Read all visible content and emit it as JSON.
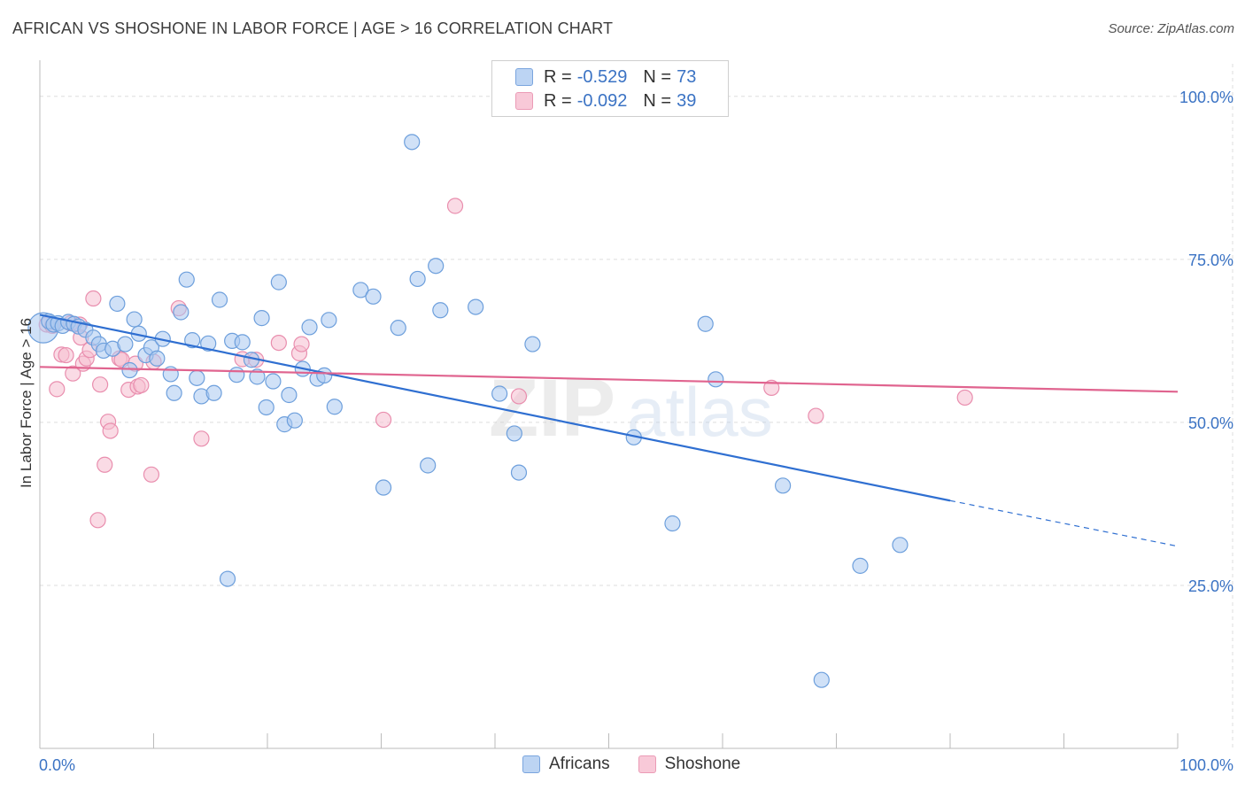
{
  "title": "AFRICAN VS SHOSHONE IN LABOR FORCE | AGE > 16 CORRELATION CHART",
  "source": "Source: ZipAtlas.com",
  "watermark": {
    "zip": "ZIP",
    "atlas": "atlas"
  },
  "legend": {
    "africans": {
      "r_label": "R = ",
      "r_value": "-0.529",
      "n_label": "N = ",
      "n_value": "73"
    },
    "shoshone": {
      "r_label": "R = ",
      "r_value": "-0.092",
      "n_label": "N = ",
      "n_value": "39"
    }
  },
  "bottom_legend": {
    "africans": "Africans",
    "shoshone": "Shoshone"
  },
  "colors": {
    "africans_fill": "#a9c8f0",
    "africans_stroke": "#6d9fdc",
    "africans_line": "#2f6fd1",
    "shoshone_fill": "#f6bdd0",
    "shoshone_stroke": "#e98eae",
    "shoshone_line": "#e0648f",
    "grid": "#dddddd",
    "tick_text": "#3b73c4"
  },
  "chart_data": {
    "type": "scatter",
    "title": "AFRICAN VS SHOSHONE IN LABOR FORCE | AGE > 16 CORRELATION CHART",
    "xlabel": "",
    "ylabel": "In Labor Force | Age > 16",
    "xlim": [
      0,
      100
    ],
    "ylim": [
      0,
      105
    ],
    "x_tick_labels": [
      "0.0%",
      "100.0%"
    ],
    "y_ticks": [
      25,
      50,
      75,
      100
    ],
    "y_tick_labels": [
      "25.0%",
      "50.0%",
      "75.0%",
      "100.0%"
    ],
    "grid": true,
    "series": [
      {
        "name": "Africans",
        "r": -0.529,
        "n": 73,
        "trend": {
          "x0": 0,
          "y0": 66.5,
          "x1": 80,
          "y1": 38.0,
          "dash_x1": 100,
          "dash_y1": 31.0
        },
        "points": [
          [
            0.3,
            64.5
          ],
          [
            0.8,
            65.5
          ],
          [
            1.2,
            65
          ],
          [
            1.6,
            65.2
          ],
          [
            2.0,
            64.8
          ],
          [
            2.5,
            65.4
          ],
          [
            3.0,
            65.1
          ],
          [
            3.4,
            64.7
          ],
          [
            4.0,
            64.2
          ],
          [
            4.7,
            63.0
          ],
          [
            5.2,
            62.0
          ],
          [
            5.6,
            61.0
          ],
          [
            6.4,
            61.3
          ],
          [
            6.8,
            68.2
          ],
          [
            7.5,
            62.0
          ],
          [
            7.9,
            58.0
          ],
          [
            8.3,
            65.8
          ],
          [
            8.7,
            63.6
          ],
          [
            9.3,
            60.3
          ],
          [
            9.8,
            61.5
          ],
          [
            10.3,
            59.8
          ],
          [
            10.8,
            62.8
          ],
          [
            11.5,
            57.4
          ],
          [
            11.8,
            54.5
          ],
          [
            12.4,
            66.9
          ],
          [
            12.9,
            71.9
          ],
          [
            13.4,
            62.6
          ],
          [
            13.8,
            56.8
          ],
          [
            14.2,
            54.0
          ],
          [
            14.8,
            62.1
          ],
          [
            15.3,
            54.5
          ],
          [
            15.8,
            68.8
          ],
          [
            16.5,
            26.0
          ],
          [
            16.9,
            62.5
          ],
          [
            17.3,
            57.3
          ],
          [
            17.8,
            62.3
          ],
          [
            18.6,
            59.6
          ],
          [
            19.1,
            57.0
          ],
          [
            19.5,
            66.0
          ],
          [
            19.9,
            52.3
          ],
          [
            20.5,
            56.3
          ],
          [
            21.0,
            71.5
          ],
          [
            21.5,
            49.7
          ],
          [
            21.9,
            54.2
          ],
          [
            22.4,
            50.3
          ],
          [
            23.1,
            58.2
          ],
          [
            23.7,
            64.6
          ],
          [
            24.4,
            56.7
          ],
          [
            25.0,
            57.2
          ],
          [
            25.4,
            65.7
          ],
          [
            25.9,
            52.4
          ],
          [
            28.2,
            70.3
          ],
          [
            29.3,
            69.3
          ],
          [
            30.2,
            40.0
          ],
          [
            31.5,
            64.5
          ],
          [
            32.7,
            93.0
          ],
          [
            33.2,
            72.0
          ],
          [
            34.1,
            43.4
          ],
          [
            34.8,
            74.0
          ],
          [
            35.2,
            67.2
          ],
          [
            38.3,
            67.7
          ],
          [
            40.4,
            54.4
          ],
          [
            41.7,
            48.3
          ],
          [
            42.1,
            42.3
          ],
          [
            43.3,
            62.0
          ],
          [
            52.2,
            47.7
          ],
          [
            55.6,
            34.5
          ],
          [
            58.5,
            65.1
          ],
          [
            59.4,
            56.6
          ],
          [
            65.3,
            40.3
          ],
          [
            68.7,
            10.5
          ],
          [
            72.1,
            28.0
          ],
          [
            75.6,
            31.2
          ]
        ]
      },
      {
        "name": "Shoshone",
        "r": -0.092,
        "n": 39,
        "trend": {
          "x0": 0,
          "y0": 58.5,
          "x1": 100,
          "y1": 54.7
        },
        "points": [
          [
            0.6,
            65
          ],
          [
            1.1,
            64.8
          ],
          [
            1.5,
            55.1
          ],
          [
            1.9,
            60.4
          ],
          [
            2.3,
            60.3
          ],
          [
            2.7,
            65.2
          ],
          [
            2.9,
            57.5
          ],
          [
            3.5,
            65.0
          ],
          [
            3.6,
            63.0
          ],
          [
            3.8,
            59.0
          ],
          [
            4.1,
            59.8
          ],
          [
            4.4,
            61.1
          ],
          [
            4.7,
            69.0
          ],
          [
            5.1,
            35.0
          ],
          [
            5.3,
            55.8
          ],
          [
            5.7,
            43.5
          ],
          [
            6.0,
            50.1
          ],
          [
            6.2,
            48.7
          ],
          [
            7.0,
            59.8
          ],
          [
            7.2,
            59.6
          ],
          [
            7.8,
            55.0
          ],
          [
            8.4,
            59.0
          ],
          [
            8.6,
            55.5
          ],
          [
            8.9,
            55.7
          ],
          [
            9.8,
            42.0
          ],
          [
            10.0,
            59.3
          ],
          [
            12.2,
            67.5
          ],
          [
            14.2,
            47.5
          ],
          [
            17.8,
            59.7
          ],
          [
            19.0,
            59.6
          ],
          [
            21.0,
            62.2
          ],
          [
            22.8,
            60.6
          ],
          [
            23.0,
            62.0
          ],
          [
            30.2,
            50.4
          ],
          [
            36.5,
            83.2
          ],
          [
            42.1,
            54.0
          ],
          [
            64.3,
            55.3
          ],
          [
            68.2,
            51.0
          ],
          [
            81.3,
            53.8
          ]
        ]
      }
    ]
  }
}
